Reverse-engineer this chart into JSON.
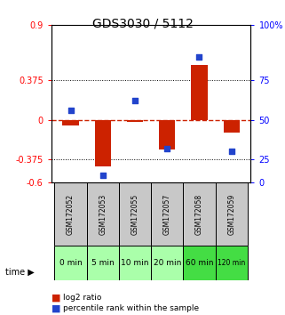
{
  "title": "GDS3030 / 5112",
  "samples": [
    "GSM172052",
    "GSM172053",
    "GSM172055",
    "GSM172057",
    "GSM172058",
    "GSM172059"
  ],
  "time_labels": [
    "0 min",
    "5 min",
    "10 min",
    "20 min",
    "60 min",
    "120 min"
  ],
  "log2_ratio": [
    -0.05,
    -0.44,
    -0.02,
    -0.28,
    0.52,
    -0.12
  ],
  "percentile_rank": [
    46,
    5,
    52,
    22,
    80,
    20
  ],
  "ylim_left": [
    -0.6,
    0.9
  ],
  "ylim_right": [
    0,
    100
  ],
  "yticks_left": [
    -0.6,
    -0.375,
    0,
    0.375,
    0.9
  ],
  "yticks_right": [
    0,
    25,
    50,
    75,
    100
  ],
  "ytick_labels_left": [
    "-0.6",
    "-0.375",
    "0",
    "0.375",
    "0.9"
  ],
  "ytick_labels_right": [
    "0",
    "25",
    "50",
    "75",
    "100%"
  ],
  "hlines": [
    0.375,
    -0.375
  ],
  "bar_color": "#cc2200",
  "dot_color": "#2244cc",
  "zero_line_color": "#cc2200",
  "bg_color_samples": "#c8c8c8",
  "bg_color_time_light": "#aaffaa",
  "bg_color_time_dark": "#44dd44",
  "grid_color": "#000000",
  "bar_width": 0.5
}
